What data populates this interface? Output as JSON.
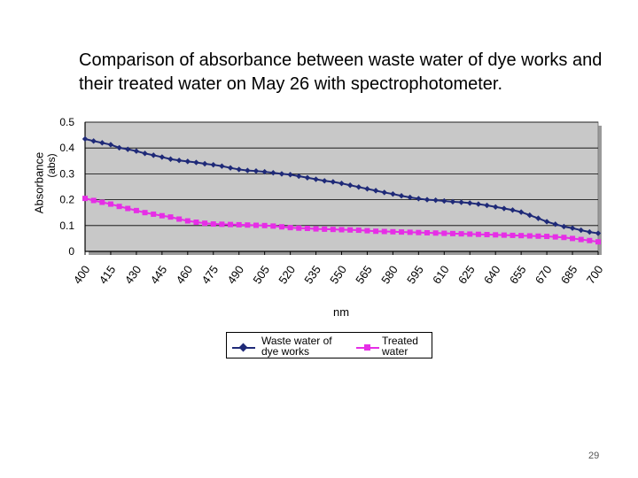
{
  "page": {
    "title": "Comparison of absorbance between waste water of dye works and their treated water on May 26 with spectrophotometer.",
    "page_number": "29"
  },
  "chart_data": {
    "type": "line",
    "title": "Comparison of absorbance between waste water of dye works and their treated water on May 26 with spectrophotometer.",
    "xlabel": "nm",
    "ylabel": "Absorbance",
    "ylabel_unit": "(abs)",
    "ylim": [
      0,
      0.5
    ],
    "yticks": [
      "0",
      "0.1",
      "0.2",
      "0.3",
      "0.4",
      "0.5"
    ],
    "x_tick_labels": [
      "400",
      "415",
      "430",
      "445",
      "460",
      "475",
      "490",
      "505",
      "520",
      "535",
      "550",
      "565",
      "580",
      "595",
      "610",
      "625",
      "640",
      "655",
      "670",
      "685",
      "700"
    ],
    "x": [
      400,
      405,
      410,
      415,
      420,
      425,
      430,
      435,
      440,
      445,
      450,
      455,
      460,
      465,
      470,
      475,
      480,
      485,
      490,
      495,
      500,
      505,
      510,
      515,
      520,
      525,
      530,
      535,
      540,
      545,
      550,
      555,
      560,
      565,
      570,
      575,
      580,
      585,
      590,
      595,
      600,
      605,
      610,
      615,
      620,
      625,
      630,
      635,
      640,
      645,
      650,
      655,
      660,
      665,
      670,
      675,
      680,
      685,
      690,
      695,
      700
    ],
    "grid": true,
    "legend_position": "bottom",
    "series": [
      {
        "name": "Waste water of dye works",
        "color": "#1f2a78",
        "marker": "diamond",
        "values": [
          0.435,
          0.427,
          0.42,
          0.413,
          0.401,
          0.395,
          0.388,
          0.379,
          0.372,
          0.365,
          0.357,
          0.352,
          0.348,
          0.344,
          0.339,
          0.335,
          0.33,
          0.323,
          0.317,
          0.313,
          0.311,
          0.308,
          0.304,
          0.3,
          0.297,
          0.291,
          0.285,
          0.279,
          0.273,
          0.269,
          0.263,
          0.256,
          0.249,
          0.242,
          0.235,
          0.228,
          0.222,
          0.215,
          0.209,
          0.204,
          0.2,
          0.198,
          0.195,
          0.192,
          0.19,
          0.187,
          0.183,
          0.178,
          0.172,
          0.166,
          0.16,
          0.152,
          0.14,
          0.128,
          0.115,
          0.105,
          0.096,
          0.09,
          0.082,
          0.075,
          0.07
        ]
      },
      {
        "name": "Treated water",
        "color": "#e62ee6",
        "marker": "square",
        "values": [
          0.205,
          0.197,
          0.19,
          0.183,
          0.174,
          0.166,
          0.158,
          0.15,
          0.144,
          0.138,
          0.133,
          0.125,
          0.118,
          0.113,
          0.109,
          0.106,
          0.105,
          0.104,
          0.103,
          0.102,
          0.101,
          0.1,
          0.098,
          0.095,
          0.092,
          0.09,
          0.089,
          0.087,
          0.086,
          0.085,
          0.084,
          0.083,
          0.082,
          0.08,
          0.078,
          0.077,
          0.076,
          0.075,
          0.074,
          0.073,
          0.072,
          0.071,
          0.07,
          0.069,
          0.068,
          0.067,
          0.066,
          0.065,
          0.064,
          0.063,
          0.062,
          0.061,
          0.06,
          0.059,
          0.058,
          0.056,
          0.054,
          0.05,
          0.046,
          0.042,
          0.037
        ]
      }
    ]
  }
}
